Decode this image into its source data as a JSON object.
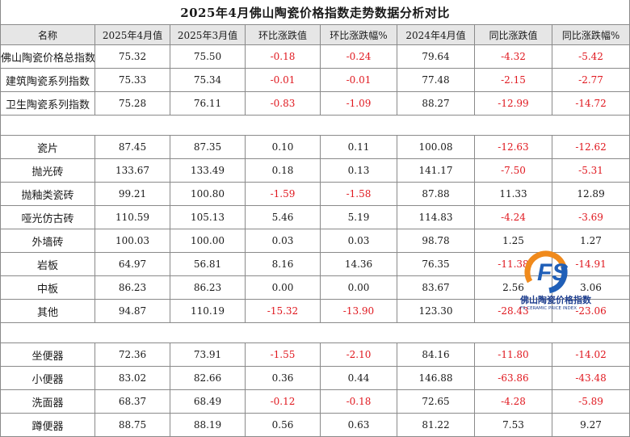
{
  "title": "2025年4月佛山陶瓷价格指数走势数据分析对比",
  "headers": [
    "名称",
    "2025年4月值",
    "2025年3月值",
    "环比涨跌值",
    "环比涨跌幅%",
    "2024年4月值",
    "同比涨跌值",
    "同比涨跌幅%"
  ],
  "groups": [
    {
      "rows": [
        {
          "name": "佛山陶瓷价格总指数",
          "apr2025": "75.32",
          "mar2025": "75.50",
          "mom_change": "-0.18",
          "mom_pct": "-0.24",
          "apr2024": "79.64",
          "yoy_change": "-4.32",
          "yoy_pct": "-5.42"
        },
        {
          "name": "建筑陶瓷系列指数",
          "apr2025": "75.33",
          "mar2025": "75.34",
          "mom_change": "-0.01",
          "mom_pct": "-0.01",
          "apr2024": "77.48",
          "yoy_change": "-2.15",
          "yoy_pct": "-2.77"
        },
        {
          "name": "卫生陶瓷系列指数",
          "apr2025": "75.28",
          "mar2025": "76.11",
          "mom_change": "-0.83",
          "mom_pct": "-1.09",
          "apr2024": "88.27",
          "yoy_change": "-12.99",
          "yoy_pct": "-14.72"
        }
      ]
    },
    {
      "rows": [
        {
          "name": "瓷片",
          "apr2025": "87.45",
          "mar2025": "87.35",
          "mom_change": "0.10",
          "mom_pct": "0.11",
          "apr2024": "100.08",
          "yoy_change": "-12.63",
          "yoy_pct": "-12.62"
        },
        {
          "name": "抛光砖",
          "apr2025": "133.67",
          "mar2025": "133.49",
          "mom_change": "0.18",
          "mom_pct": "0.13",
          "apr2024": "141.17",
          "yoy_change": "-7.50",
          "yoy_pct": "-5.31"
        },
        {
          "name": "抛釉类瓷砖",
          "apr2025": "99.21",
          "mar2025": "100.80",
          "mom_change": "-1.59",
          "mom_pct": "-1.58",
          "apr2024": "87.88",
          "yoy_change": "11.33",
          "yoy_pct": "12.89"
        },
        {
          "name": "哑光仿古砖",
          "apr2025": "110.59",
          "mar2025": "105.13",
          "mom_change": "5.46",
          "mom_pct": "5.19",
          "apr2024": "114.83",
          "yoy_change": "-4.24",
          "yoy_pct": "-3.69"
        },
        {
          "name": "外墙砖",
          "apr2025": "100.03",
          "mar2025": "100.00",
          "mom_change": "0.03",
          "mom_pct": "0.03",
          "apr2024": "98.78",
          "yoy_change": "1.25",
          "yoy_pct": "1.27"
        },
        {
          "name": "岩板",
          "apr2025": "64.97",
          "mar2025": "56.81",
          "mom_change": "8.16",
          "mom_pct": "14.36",
          "apr2024": "76.35",
          "yoy_change": "-11.38",
          "yoy_pct": "-14.91"
        },
        {
          "name": "中板",
          "apr2025": "86.23",
          "mar2025": "86.23",
          "mom_change": "0.00",
          "mom_pct": "0.00",
          "apr2024": "83.67",
          "yoy_change": "2.56",
          "yoy_pct": "3.06"
        },
        {
          "name": "其他",
          "apr2025": "94.87",
          "mar2025": "110.19",
          "mom_change": "-15.32",
          "mom_pct": "-13.90",
          "apr2024": "123.30",
          "yoy_change": "-28.43",
          "yoy_pct": "-23.06"
        }
      ]
    },
    {
      "rows": [
        {
          "name": "坐便器",
          "apr2025": "72.36",
          "mar2025": "73.91",
          "mom_change": "-1.55",
          "mom_pct": "-2.10",
          "apr2024": "84.16",
          "yoy_change": "-11.80",
          "yoy_pct": "-14.02"
        },
        {
          "name": "小便器",
          "apr2025": "83.02",
          "mar2025": "82.66",
          "mom_change": "0.36",
          "mom_pct": "0.44",
          "apr2024": "146.88",
          "yoy_change": "-63.86",
          "yoy_pct": "-43.48"
        },
        {
          "name": "洗面器",
          "apr2025": "68.37",
          "mar2025": "68.49",
          "mom_change": "-0.12",
          "mom_pct": "-0.18",
          "apr2024": "72.65",
          "yoy_change": "-4.28",
          "yoy_pct": "-5.89"
        },
        {
          "name": "蹲便器",
          "apr2025": "88.75",
          "mar2025": "88.19",
          "mom_change": "0.56",
          "mom_pct": "0.63",
          "apr2024": "81.22",
          "yoy_change": "7.53",
          "yoy_pct": "9.27"
        }
      ]
    }
  ],
  "watermark": {
    "icon": "fs-logo-icon",
    "logo_letters": "FS",
    "title": "佛山陶瓷价格指数",
    "subtitle": "FS CERAMIC PRICE INDEX"
  },
  "colors": {
    "negative": "#e0181f",
    "header_bg": "#e6e6e6",
    "border": "#8a8a8a",
    "logo_blue": "#1f3f8f",
    "logo_orange": "#f08a1c"
  }
}
